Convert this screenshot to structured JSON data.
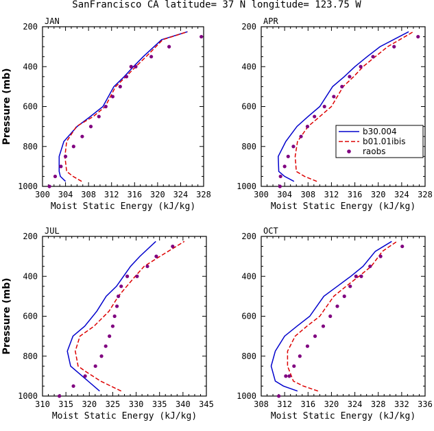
{
  "title": "SanFrancisco CA  latitude= 37 N longitude= 123.75 W",
  "legend": [
    "b30.004",
    "b01.01ibis",
    "raobs"
  ],
  "colors": {
    "b30.004": "#0000cc",
    "b01.01ibis": "#dd0000",
    "raobs": "#800080"
  },
  "chart_data": [
    {
      "type": "line",
      "panel": "JAN",
      "xlabel": "Moist Static Energy (kJ/kg)",
      "ylabel": "Pressure (mb)",
      "xlim": [
        300,
        328
      ],
      "ylim": [
        1000,
        200
      ],
      "xticks": [
        300,
        304,
        308,
        312,
        316,
        320,
        324,
        328
      ],
      "yticks": [
        200,
        400,
        600,
        800,
        1000
      ],
      "series": [
        {
          "name": "b30.004",
          "style": "solid",
          "x": [
            304.0,
            303.1,
            302.9,
            302.9,
            303.7,
            306.0,
            308.3,
            310.5,
            312.4,
            314.2,
            315.8,
            317.5,
            320.7,
            325.2
          ],
          "y": [
            975,
            950,
            925,
            850,
            775,
            700,
            650,
            600,
            500,
            450,
            400,
            350,
            265,
            225
          ]
        },
        {
          "name": "b01.01ibis",
          "style": "dashed",
          "x": [
            306.8,
            305.3,
            304.2,
            303.9,
            304.2,
            305.9,
            308.8,
            310.9,
            312.7,
            314.5,
            316.2,
            318.0,
            320.9,
            325.2
          ],
          "y": [
            975,
            950,
            925,
            850,
            775,
            700,
            650,
            600,
            500,
            450,
            400,
            350,
            265,
            225
          ]
        },
        {
          "name": "raobs",
          "style": "dot",
          "x": [
            301.2,
            302.2,
            303.2,
            304.0,
            305.4,
            306.9,
            308.4,
            309.8,
            311.0,
            312.2,
            313.5,
            314.6,
            315.4,
            316.2,
            318.9,
            322.0,
            327.6
          ],
          "y": [
            1000,
            950,
            900,
            850,
            800,
            750,
            700,
            650,
            600,
            550,
            500,
            450,
            400,
            400,
            350,
            300,
            250
          ]
        }
      ]
    },
    {
      "type": "line",
      "panel": "APR",
      "xlabel": "Moist Static Energy (kJ/kg)",
      "ylabel": "",
      "xlim": [
        300,
        328
      ],
      "ylim": [
        1000,
        200
      ],
      "xticks": [
        300,
        304,
        308,
        312,
        316,
        320,
        324,
        328
      ],
      "yticks": [
        200,
        400,
        600,
        800,
        1000
      ],
      "series": [
        {
          "name": "b30.004",
          "style": "solid",
          "x": [
            305.6,
            304.0,
            303.0,
            302.9,
            304.2,
            306.1,
            308.0,
            310.0,
            312.2,
            314.2,
            316.0,
            318.1,
            320.3,
            325.2
          ],
          "y": [
            975,
            950,
            925,
            850,
            775,
            700,
            650,
            600,
            500,
            450,
            400,
            350,
            300,
            225
          ]
        },
        {
          "name": "b01.01ibis",
          "style": "dashed",
          "x": [
            309.5,
            307.4,
            306.0,
            305.8,
            306.2,
            308.0,
            310.0,
            312.0,
            314.0,
            315.8,
            317.4,
            319.5,
            321.6,
            326.0
          ],
          "y": [
            975,
            950,
            925,
            850,
            775,
            700,
            650,
            600,
            500,
            450,
            400,
            350,
            300,
            225
          ]
        },
        {
          "name": "raobs",
          "style": "dot",
          "x": [
            303.2,
            303.3,
            304.0,
            304.6,
            305.5,
            306.8,
            307.9,
            309.1,
            310.8,
            312.4,
            313.8,
            315.1,
            317.0,
            319.1,
            322.7,
            326.8
          ],
          "y": [
            1000,
            950,
            900,
            850,
            800,
            750,
            700,
            650,
            600,
            550,
            500,
            450,
            400,
            350,
            300,
            250
          ]
        }
      ]
    },
    {
      "type": "line",
      "panel": "JUL",
      "xlabel": "Moist Static Energy (kJ/kg)",
      "ylabel": "Pressure (mb)",
      "xlim": [
        310,
        345
      ],
      "ylim": [
        1000,
        200
      ],
      "xticks": [
        310,
        315,
        320,
        325,
        330,
        335,
        340,
        345
      ],
      "yticks": [
        200,
        400,
        600,
        800,
        1000
      ],
      "series": [
        {
          "name": "b30.004",
          "style": "solid",
          "x": [
            322.2,
            318.5,
            316.0,
            315.3,
            316.5,
            319.0,
            321.6,
            323.6,
            325.8,
            327.3,
            328.8,
            330.8,
            334.2
          ],
          "y": [
            975,
            900,
            850,
            775,
            700,
            650,
            575,
            500,
            450,
            400,
            350,
            300,
            225
          ]
        },
        {
          "name": "b01.01ibis",
          "style": "dashed",
          "x": [
            326.8,
            322.4,
            319.1,
            317.6,
            317.0,
            318.0,
            321.0,
            324.2,
            326.2,
            328.0,
            329.8,
            331.7,
            335.1,
            340.3
          ],
          "y": [
            975,
            925,
            875,
            850,
            775,
            700,
            650,
            575,
            500,
            450,
            400,
            350,
            300,
            225
          ]
        },
        {
          "name": "raobs",
          "style": "dot",
          "x": [
            313.6,
            316.6,
            319.1,
            321.3,
            322.6,
            323.5,
            324.3,
            325.0,
            325.4,
            325.9,
            326.2,
            326.8,
            328.1,
            330.2,
            332.4,
            334.3,
            337.8
          ],
          "y": [
            1000,
            950,
            900,
            850,
            800,
            750,
            700,
            650,
            600,
            550,
            500,
            450,
            400,
            400,
            350,
            300,
            250
          ]
        }
      ]
    },
    {
      "type": "line",
      "panel": "OCT",
      "xlabel": "Moist Static Energy (kJ/kg)",
      "ylabel": "",
      "xlim": [
        308,
        336
      ],
      "ylim": [
        1000,
        200
      ],
      "xticks": [
        308,
        312,
        316,
        320,
        324,
        328,
        332,
        336
      ],
      "yticks": [
        200,
        400,
        600,
        800,
        1000
      ],
      "series": [
        {
          "name": "b30.004",
          "style": "solid",
          "x": [
            314.2,
            311.8,
            310.4,
            309.7,
            310.4,
            312.0,
            314.1,
            316.3,
            318.7,
            321.0,
            323.3,
            325.4,
            327.5,
            330.3
          ],
          "y": [
            975,
            950,
            925,
            850,
            775,
            700,
            650,
            600,
            500,
            450,
            400,
            350,
            275,
            225
          ]
        },
        {
          "name": "b01.01ibis",
          "style": "dashed",
          "x": [
            317.7,
            315.2,
            313.5,
            312.5,
            312.5,
            313.8,
            315.8,
            318.0,
            320.4,
            322.5,
            324.7,
            326.8,
            328.7,
            331.2
          ],
          "y": [
            975,
            950,
            925,
            850,
            775,
            700,
            650,
            600,
            500,
            450,
            400,
            350,
            275,
            225
          ]
        },
        {
          "name": "raobs",
          "style": "dot",
          "x": [
            311.0,
            312.2,
            312.8,
            313.6,
            314.6,
            315.9,
            317.2,
            318.6,
            319.8,
            321.0,
            322.2,
            323.2,
            324.2,
            325.1,
            326.6,
            328.4,
            332.1
          ],
          "y": [
            1000,
            900,
            900,
            850,
            800,
            750,
            700,
            650,
            600,
            550,
            500,
            450,
            400,
            400,
            350,
            300,
            250
          ]
        }
      ]
    }
  ]
}
